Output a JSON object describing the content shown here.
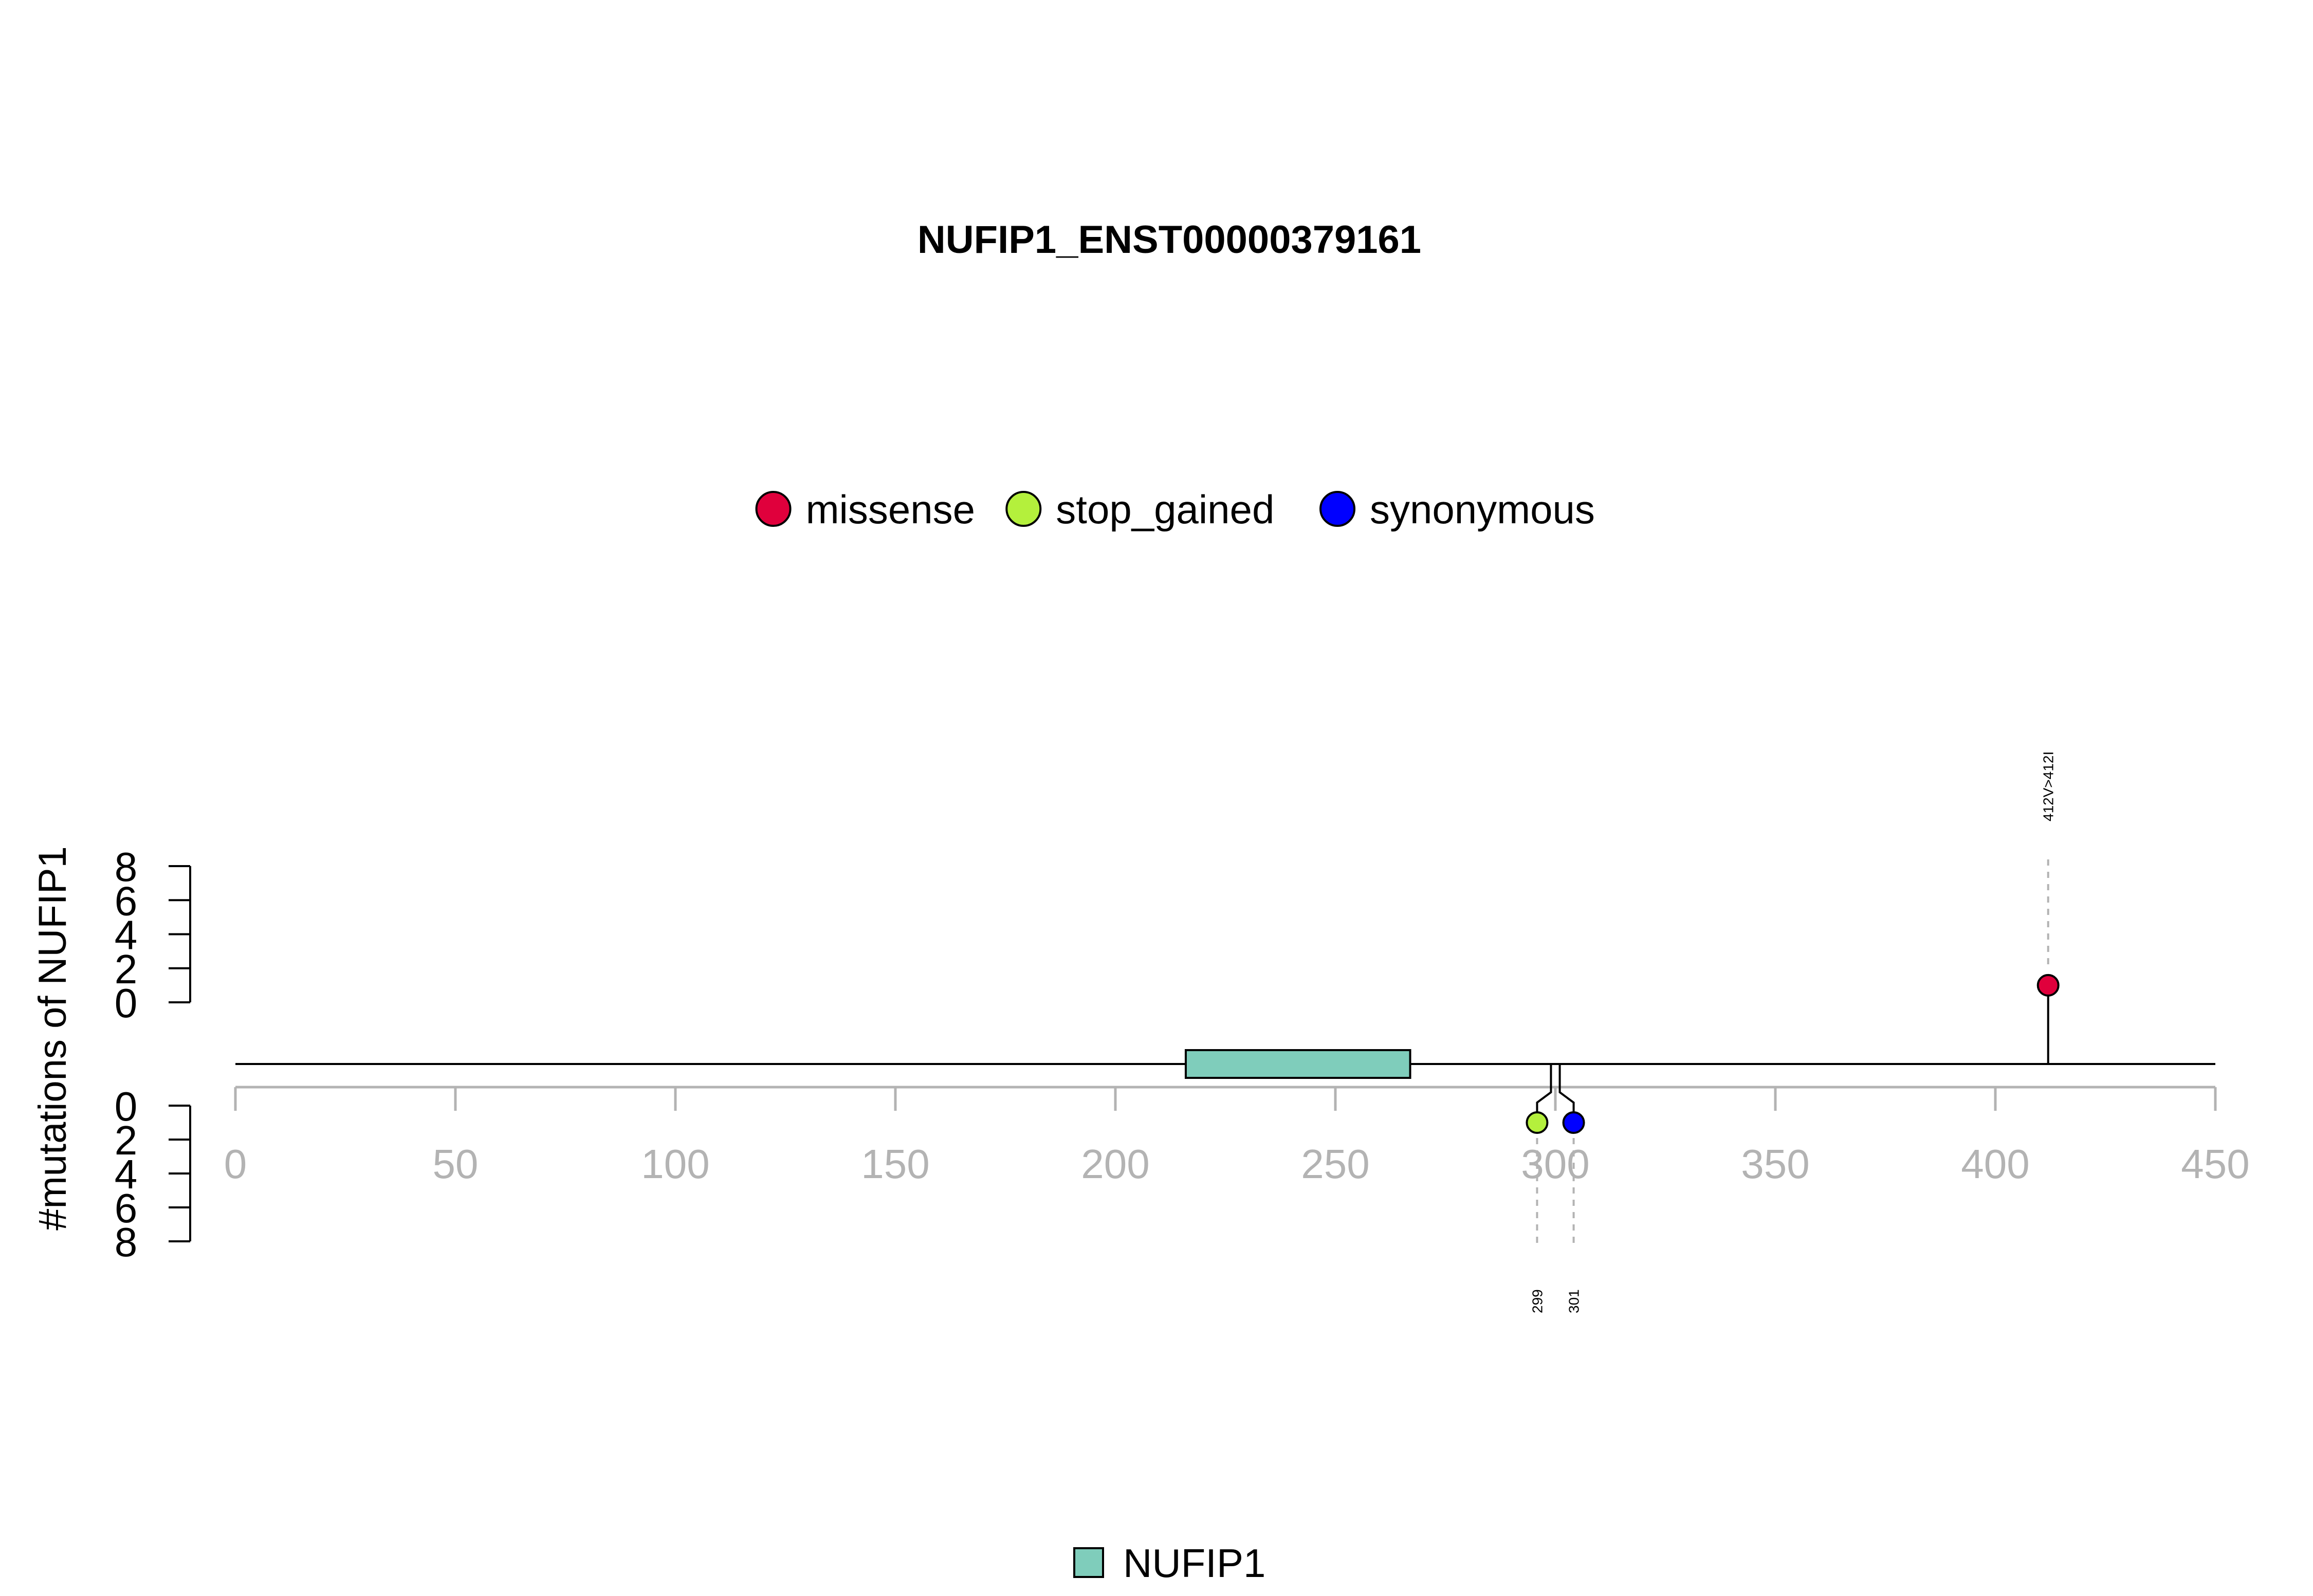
{
  "chart_data": {
    "type": "lollipop",
    "title": "NUFIP1_ENST00000379161",
    "ylabel": "#mutations of NUFIP1",
    "xlim": [
      0,
      450
    ],
    "x_ticks": [
      0,
      50,
      100,
      150,
      200,
      250,
      300,
      350,
      400,
      450
    ],
    "x_tick_labels": [
      "0",
      "50",
      "100",
      "150",
      "200",
      "250",
      "300",
      "350",
      "400",
      "450"
    ],
    "ylim_top": [
      0,
      8
    ],
    "y_ticks_top": [
      0,
      2,
      4,
      6,
      8
    ],
    "ylim_bottom": [
      0,
      8
    ],
    "y_ticks_bottom": [
      0,
      2,
      4,
      6,
      8
    ],
    "legend_mutation_types": [
      {
        "label": "missense",
        "color": "#e0003c"
      },
      {
        "label": "stop_gained",
        "color": "#b4f03c"
      },
      {
        "label": "synonymous",
        "color": "#0000ff"
      }
    ],
    "domains": [
      {
        "name": "NUFIP1",
        "start": 216,
        "end": 267,
        "color": "#7fcdbb"
      }
    ],
    "legend_domains": [
      {
        "label": "NUFIP1",
        "color": "#7fcdbb"
      }
    ],
    "mutations_top": [
      {
        "position": 412,
        "count": 1,
        "type": "missense",
        "label": "412V>412I",
        "color": "#e0003c"
      }
    ],
    "mutations_bottom": [
      {
        "position": 299,
        "count": 1,
        "type": "stop_gained",
        "label": "299",
        "color": "#b4f03c"
      },
      {
        "position": 301,
        "count": 1,
        "type": "synonymous",
        "label": "301",
        "color": "#0000ff"
      }
    ],
    "axis_color": "#b3b3b3"
  }
}
